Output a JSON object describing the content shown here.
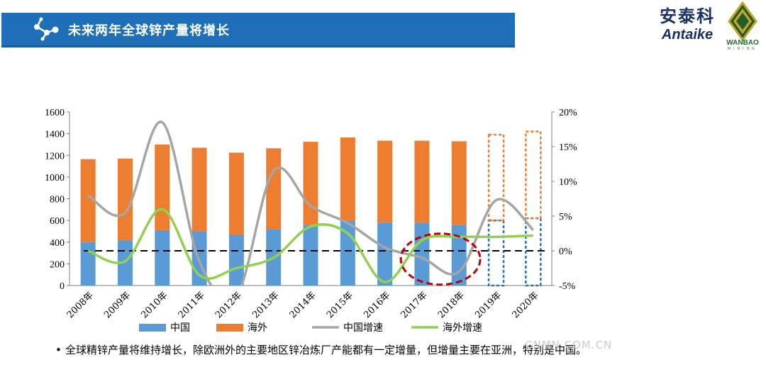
{
  "header": {
    "title": "未来两年全球锌产量将增长"
  },
  "logos": {
    "antaike_cn": "安泰科",
    "antaike_en": "Antaike",
    "wanbao": "WANBAO",
    "wanbao_sub": "MINING"
  },
  "watermark": "CNMN.COM.CN",
  "bullet": {
    "symbol": "•",
    "text": "全球精锌产量将维持增长，除欧洲外的主要地区锌冶炼厂产能都有一定增量，但增量主要在亚洲，特别是中国。"
  },
  "colors": {
    "china": "#5b9bd5",
    "overseas": "#ed7d31",
    "china_growth": "#a5a5a5",
    "overseas_growth": "#92d050",
    "forecast_border_china": "#1f77b4",
    "forecast_border_overseas": "#ed7d31",
    "circle": "#c00000",
    "banner": "#1f6fb8"
  },
  "chart_data": {
    "type": "bar",
    "stacked": true,
    "categories": [
      "2008年",
      "2009年",
      "2010年",
      "2011年",
      "2012年",
      "2013年",
      "2014年",
      "2015年",
      "2016年",
      "2017年",
      "2018年",
      "2019年",
      "2020年"
    ],
    "series": [
      {
        "name": "中国",
        "axis": "left",
        "values": [
          400,
          420,
          510,
          500,
          470,
          520,
          560,
          600,
          580,
          580,
          560,
          600,
          620
        ]
      },
      {
        "name": "海外",
        "axis": "left",
        "values": [
          765,
          750,
          790,
          770,
          755,
          745,
          765,
          765,
          755,
          755,
          770,
          790,
          800
        ]
      },
      {
        "name": "中国增速",
        "axis": "right",
        "type": "line",
        "values": [
          8.0,
          5.5,
          18.5,
          -1.5,
          -6.5,
          11.5,
          6.5,
          4.0,
          0.5,
          -1.0,
          -3.0,
          7.3,
          3.0
        ]
      },
      {
        "name": "海外增速",
        "axis": "right",
        "type": "line",
        "values": [
          0.0,
          -1.5,
          6.0,
          -3.5,
          -2.5,
          -1.0,
          3.5,
          2.5,
          -4.5,
          1.5,
          2.0,
          2.0,
          2.2
        ]
      }
    ],
    "forecast_categories": [
      "2019年",
      "2020年"
    ],
    "y_left": {
      "min": 0,
      "max": 1600,
      "ticks": [
        "0",
        "200",
        "400",
        "600",
        "800",
        "1000",
        "1200",
        "1400",
        "1600"
      ]
    },
    "y_right": {
      "min": -5,
      "max": 20,
      "ticks": [
        "-5%",
        "0%",
        "5%",
        "10%",
        "15%",
        "20%"
      ]
    },
    "reference_line": {
      "value": 0,
      "axis": "right",
      "style": "dashed"
    },
    "legend": [
      "中国",
      "海外",
      "中国增速",
      "海外增速"
    ],
    "legend_position": "bottom",
    "highlight": {
      "from": "2017年",
      "to": "2018年",
      "shape": "dashed-ellipse"
    }
  }
}
